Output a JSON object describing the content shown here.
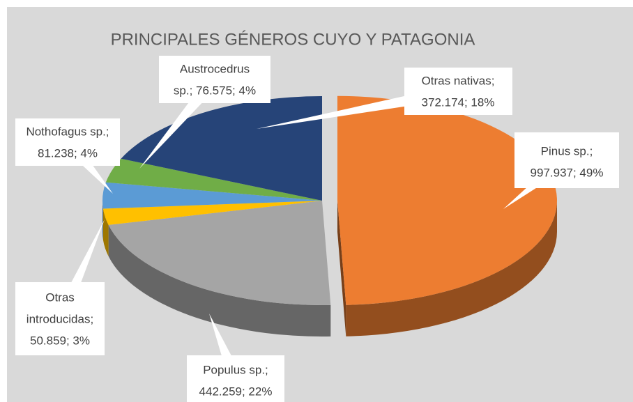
{
  "chart_data": {
    "type": "pie3d",
    "title": "PRINCIPALES GÉNEROS CUYO Y PATAGONIA",
    "values": [
      997937,
      442259,
      50859,
      81238,
      76575,
      372174
    ],
    "value_labels": [
      [
        "Pinus sp.;",
        "997.937; 49%"
      ],
      [
        "Populus sp.;",
        "442.259; 22%"
      ],
      [
        "Otras",
        "introducidas;",
        "50.859; 3%"
      ],
      [
        "Nothofagus sp.;",
        "81.238; 4%"
      ],
      [
        "Austrocedrus",
        "sp.; 76.575; 4%"
      ],
      [
        "Otras nativas;",
        "372.174; 18%"
      ]
    ],
    "colors": [
      "#ed7d31",
      "#a5a5a5",
      "#ffc000",
      "#5b9bd5",
      "#70ad47",
      "#264478"
    ],
    "exploded": [
      0
    ]
  }
}
